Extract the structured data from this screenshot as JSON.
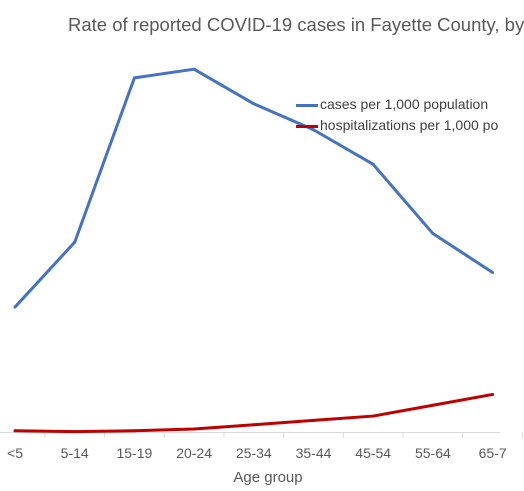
{
  "chart_data": {
    "type": "line",
    "title": "Rate of reported COVID-19 cases in Fayette County, by",
    "xlabel": "Age group",
    "ylabel": "",
    "categories": [
      "<5",
      "5-14",
      "15-19",
      "20-24",
      "25-34",
      "35-44",
      "45-54",
      "55-64",
      "65-7"
    ],
    "series": [
      {
        "name": "cases per 1,000 population",
        "color": "#4472c4",
        "values": [
          29,
          44,
          82,
          84,
          76,
          70,
          62,
          46,
          37
        ]
      },
      {
        "name": "hospitalizations per 1,000 po",
        "color": "#c00000",
        "values": [
          0.4,
          0.2,
          0.4,
          0.8,
          1.8,
          2.8,
          3.8,
          6.3,
          8.8
        ]
      }
    ],
    "ylim": [
      0,
      100
    ],
    "grid": false,
    "legend": "top-right"
  }
}
